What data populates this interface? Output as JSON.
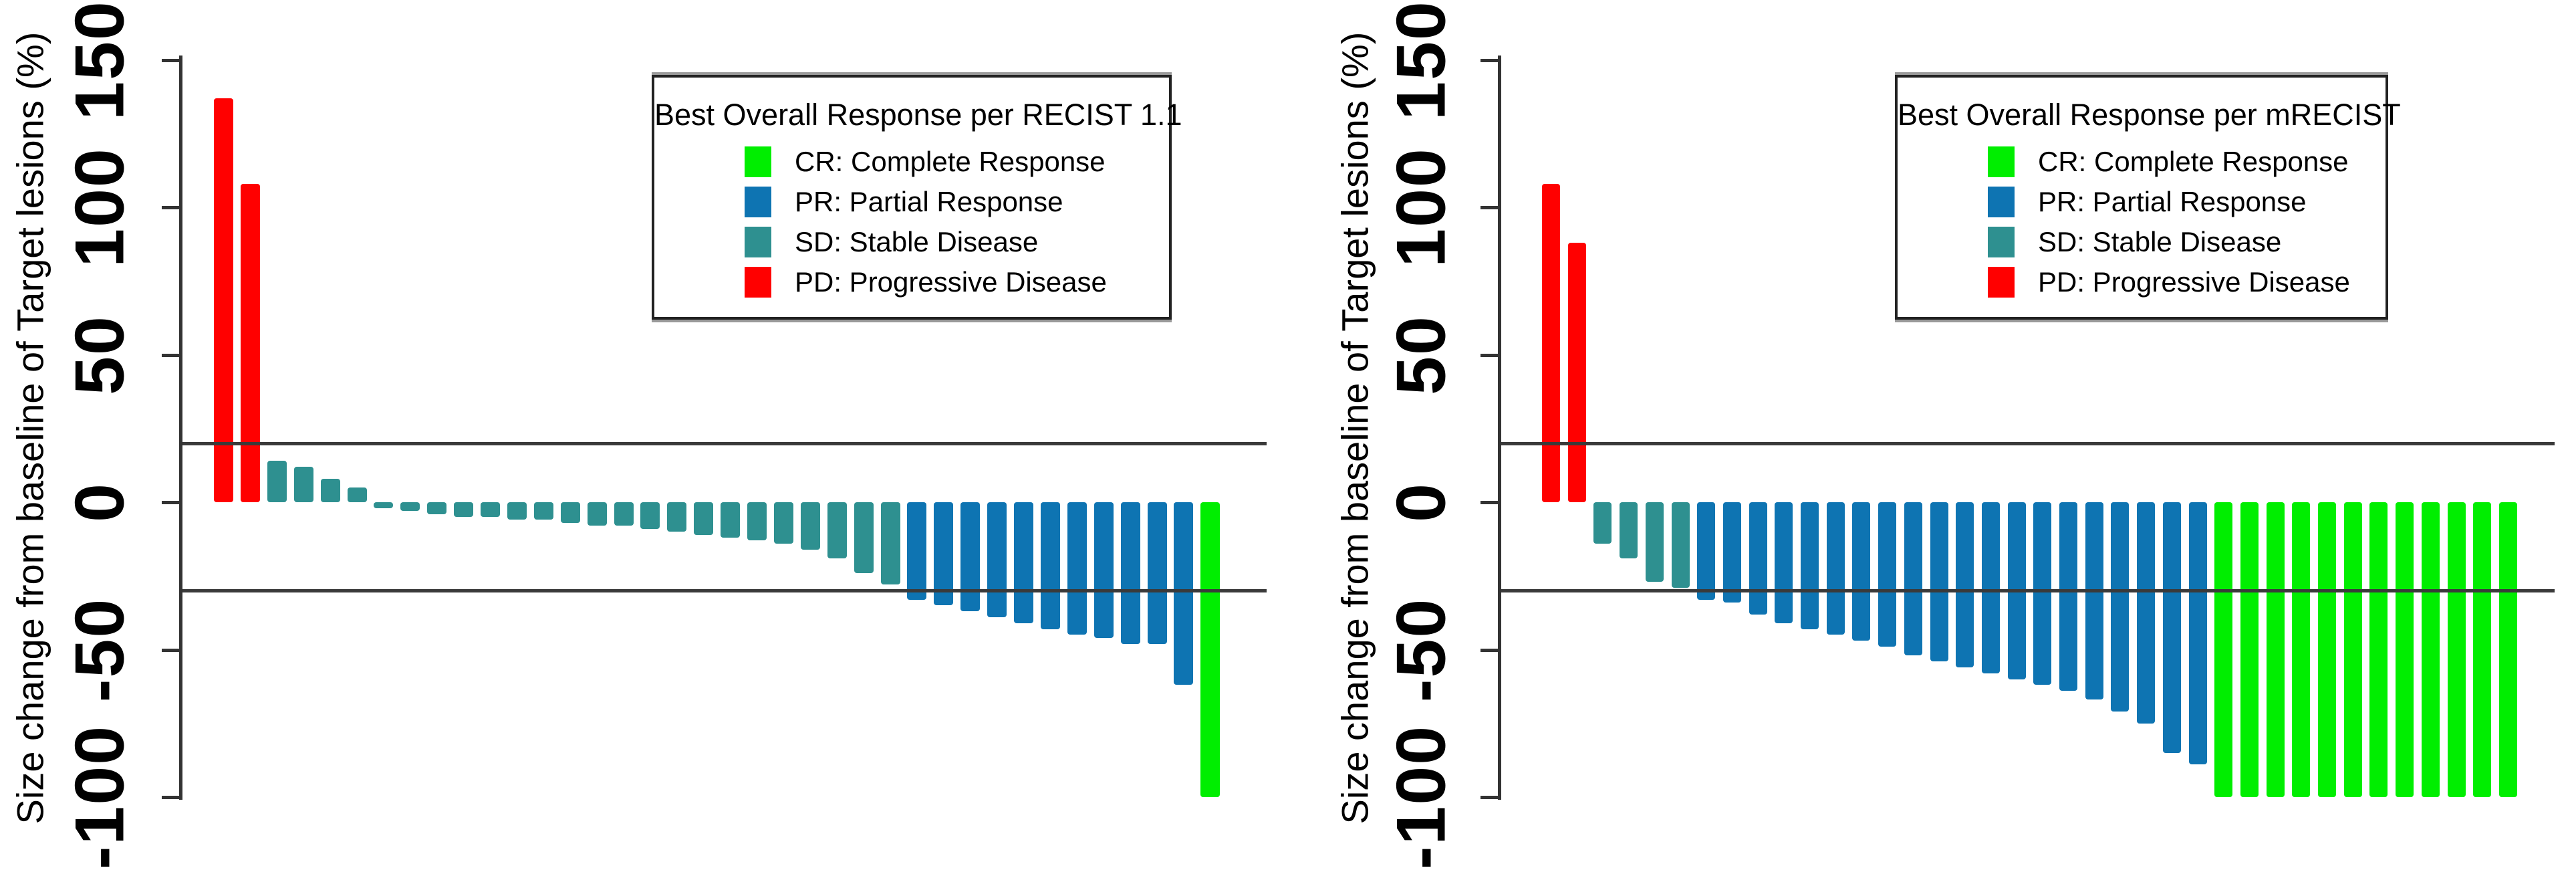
{
  "figure": {
    "background": "#FFFFFF",
    "text_color": "#000000",
    "axis_color": "#333333",
    "refline_color": "#3A3A3A"
  },
  "colors": {
    "CR": "#00EE00",
    "PR": "#0E74B2",
    "SD": "#2E9090",
    "PD": "#FF0000"
  },
  "chart_data": [
    {
      "type": "bar",
      "subtype": "waterfall",
      "legend_title": "Best Overall Response per RECIST 1.1",
      "ylabel": "Size change from baseline of Target lesions (%)",
      "xlabel": "",
      "ylim": [
        -100,
        150
      ],
      "yticks": [
        150,
        100,
        50,
        0,
        -50,
        -100
      ],
      "reference_lines": [
        20,
        -30
      ],
      "grid": false,
      "legend_position": "upper-right",
      "legend_items": [
        {
          "code": "CR",
          "label": "CR: Complete Response"
        },
        {
          "code": "PR",
          "label": "PR: Partial Response"
        },
        {
          "code": "SD",
          "label": "SD: Stable Disease"
        },
        {
          "code": "PD",
          "label": "PD: Progressive Disease"
        }
      ],
      "values": [
        137,
        108,
        14,
        12,
        8,
        5,
        -2,
        -3,
        -4,
        -5,
        -5,
        -6,
        -6,
        -7,
        -8,
        -8,
        -9,
        -10,
        -11,
        -12,
        -13,
        -14,
        -16,
        -19,
        -24,
        -28,
        -33,
        -35,
        -37,
        -39,
        -41,
        -43,
        -45,
        -46,
        -48,
        -48,
        -62,
        -100
      ],
      "responses": [
        "PD",
        "PD",
        "SD",
        "SD",
        "SD",
        "SD",
        "SD",
        "SD",
        "SD",
        "SD",
        "SD",
        "SD",
        "SD",
        "SD",
        "SD",
        "SD",
        "SD",
        "SD",
        "SD",
        "SD",
        "SD",
        "SD",
        "SD",
        "SD",
        "SD",
        "SD",
        "PR",
        "PR",
        "PR",
        "PR",
        "PR",
        "PR",
        "PR",
        "PR",
        "PR",
        "PR",
        "PR",
        "CR"
      ]
    },
    {
      "type": "bar",
      "subtype": "waterfall",
      "legend_title": "Best Overall Response per mRECIST",
      "ylabel": "Size change from baseline of Target lesions (%)",
      "xlabel": "",
      "ylim": [
        -100,
        150
      ],
      "yticks": [
        150,
        100,
        50,
        0,
        -50,
        -100
      ],
      "reference_lines": [
        20,
        -30
      ],
      "grid": false,
      "legend_position": "upper-right",
      "legend_items": [
        {
          "code": "CR",
          "label": "CR: Complete Response"
        },
        {
          "code": "PR",
          "label": "PR: Partial Response"
        },
        {
          "code": "SD",
          "label": "SD: Stable Disease"
        },
        {
          "code": "PD",
          "label": "PD: Progressive Disease"
        }
      ],
      "values": [
        108,
        88,
        -14,
        -19,
        -27,
        -29,
        -33,
        -34,
        -38,
        -41,
        -43,
        -45,
        -47,
        -49,
        -52,
        -54,
        -56,
        -58,
        -60,
        -62,
        -64,
        -67,
        -71,
        -75,
        -85,
        -89,
        -100,
        -100,
        -100,
        -100,
        -100,
        -100,
        -100,
        -100,
        -100,
        -100,
        -100,
        -100
      ],
      "responses": [
        "PD",
        "PD",
        "SD",
        "SD",
        "SD",
        "SD",
        "PR",
        "PR",
        "PR",
        "PR",
        "PR",
        "PR",
        "PR",
        "PR",
        "PR",
        "PR",
        "PR",
        "PR",
        "PR",
        "PR",
        "PR",
        "PR",
        "PR",
        "PR",
        "PR",
        "PR",
        "CR",
        "CR",
        "CR",
        "CR",
        "CR",
        "CR",
        "CR",
        "CR",
        "CR",
        "CR",
        "CR",
        "CR"
      ]
    }
  ]
}
